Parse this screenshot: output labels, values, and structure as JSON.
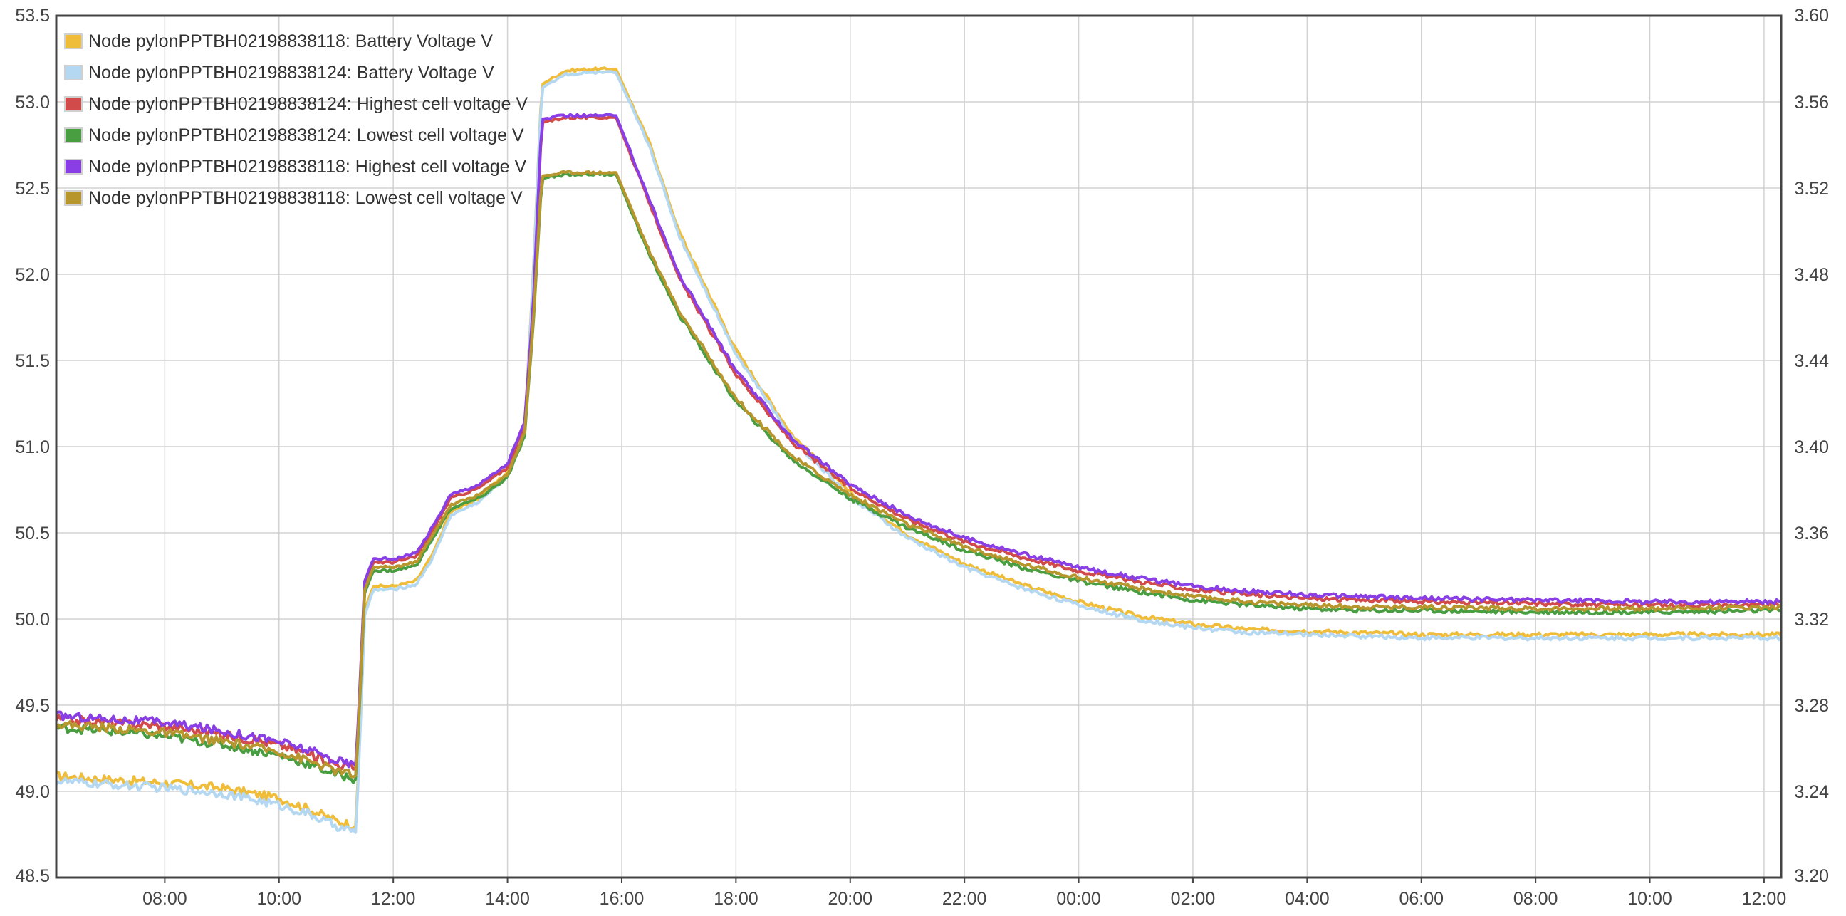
{
  "chart_data": {
    "type": "line",
    "title": "",
    "xlabel": "",
    "ylabel": "",
    "y_left": {
      "min": 48.5,
      "max": 53.5,
      "ticks": [
        "48.5",
        "49.0",
        "49.5",
        "50.0",
        "50.5",
        "51.0",
        "51.5",
        "52.0",
        "52.5",
        "53.0",
        "53.5"
      ]
    },
    "y_right": {
      "min": 3.2,
      "max": 3.6,
      "ticks": [
        "3.20",
        "3.24",
        "3.28",
        "3.32",
        "3.36",
        "3.40",
        "3.44",
        "3.48",
        "3.52",
        "3.56",
        "3.60"
      ]
    },
    "x_ticks": [
      "08:00",
      "10:00",
      "12:00",
      "14:00",
      "16:00",
      "18:00",
      "20:00",
      "22:00",
      "00:00",
      "02:00",
      "04:00",
      "06:00",
      "08:00",
      "10:00",
      "12:00"
    ],
    "x_range_hours": [
      6.1,
      36.3
    ],
    "x_unit": "hours since 00:00 of day 1",
    "grid": true,
    "legend_position": "top-left",
    "series": [
      {
        "name": "Node pylonPPTBH02198838118: Battery Voltage V",
        "color": "#f0bd3a",
        "axis": "left",
        "points": [
          [
            6.1,
            49.09
          ],
          [
            7.0,
            49.07
          ],
          [
            8.0,
            49.05
          ],
          [
            9.0,
            49.02
          ],
          [
            10.0,
            48.96
          ],
          [
            10.5,
            48.9
          ],
          [
            11.0,
            48.83
          ],
          [
            11.35,
            48.8
          ],
          [
            11.5,
            50.05
          ],
          [
            11.65,
            50.19
          ],
          [
            12.0,
            50.19
          ],
          [
            12.4,
            50.22
          ],
          [
            12.7,
            50.38
          ],
          [
            13.0,
            50.62
          ],
          [
            13.5,
            50.7
          ],
          [
            14.0,
            50.85
          ],
          [
            14.3,
            51.1
          ],
          [
            14.45,
            52.0
          ],
          [
            14.6,
            53.1
          ],
          [
            15.0,
            53.18
          ],
          [
            15.5,
            53.19
          ],
          [
            15.9,
            53.19
          ],
          [
            16.5,
            52.75
          ],
          [
            17.0,
            52.25
          ],
          [
            18.0,
            51.56
          ],
          [
            19.0,
            51.06
          ],
          [
            20.0,
            50.73
          ],
          [
            21.0,
            50.49
          ],
          [
            22.0,
            50.32
          ],
          [
            23.0,
            50.2
          ],
          [
            24.0,
            50.1
          ],
          [
            25.0,
            50.02
          ],
          [
            26.0,
            49.97
          ],
          [
            27.0,
            49.94
          ],
          [
            28.0,
            49.93
          ],
          [
            29.0,
            49.92
          ],
          [
            30.0,
            49.91
          ],
          [
            32.0,
            49.91
          ],
          [
            34.0,
            49.91
          ],
          [
            36.3,
            49.91
          ]
        ]
      },
      {
        "name": "Node pylonPPTBH02198838124: Battery Voltage V",
        "color": "#b4d8f2",
        "axis": "left",
        "points": [
          [
            6.1,
            49.06
          ],
          [
            7.0,
            49.04
          ],
          [
            8.0,
            49.02
          ],
          [
            9.0,
            48.99
          ],
          [
            10.0,
            48.92
          ],
          [
            10.5,
            48.87
          ],
          [
            11.0,
            48.8
          ],
          [
            11.35,
            48.76
          ],
          [
            11.5,
            50.02
          ],
          [
            11.65,
            50.17
          ],
          [
            12.0,
            50.17
          ],
          [
            12.4,
            50.2
          ],
          [
            12.7,
            50.36
          ],
          [
            13.0,
            50.6
          ],
          [
            13.5,
            50.68
          ],
          [
            14.0,
            50.83
          ],
          [
            14.3,
            51.08
          ],
          [
            14.45,
            51.98
          ],
          [
            14.6,
            53.08
          ],
          [
            15.0,
            53.16
          ],
          [
            15.5,
            53.17
          ],
          [
            15.9,
            53.17
          ],
          [
            16.5,
            52.73
          ],
          [
            17.0,
            52.23
          ],
          [
            18.0,
            51.54
          ],
          [
            19.0,
            51.04
          ],
          [
            20.0,
            50.71
          ],
          [
            21.0,
            50.47
          ],
          [
            22.0,
            50.3
          ],
          [
            23.0,
            50.18
          ],
          [
            24.0,
            50.08
          ],
          [
            25.0,
            50.0
          ],
          [
            26.0,
            49.95
          ],
          [
            27.0,
            49.92
          ],
          [
            28.0,
            49.91
          ],
          [
            29.0,
            49.9
          ],
          [
            30.0,
            49.89
          ],
          [
            32.0,
            49.89
          ],
          [
            34.0,
            49.89
          ],
          [
            36.3,
            49.89
          ]
        ]
      },
      {
        "name": "Node pylonPPTBH02198838124: Highest cell voltage V",
        "color": "#d24b4b",
        "axis": "left",
        "points": [
          [
            6.1,
            49.42
          ],
          [
            7.0,
            49.4
          ],
          [
            8.0,
            49.38
          ],
          [
            9.0,
            49.33
          ],
          [
            10.0,
            49.27
          ],
          [
            10.5,
            49.22
          ],
          [
            11.0,
            49.16
          ],
          [
            11.35,
            49.13
          ],
          [
            11.5,
            50.2
          ],
          [
            11.65,
            50.33
          ],
          [
            12.0,
            50.33
          ],
          [
            12.4,
            50.36
          ],
          [
            12.7,
            50.52
          ],
          [
            13.0,
            50.7
          ],
          [
            13.5,
            50.76
          ],
          [
            14.0,
            50.88
          ],
          [
            14.3,
            51.12
          ],
          [
            14.45,
            51.8
          ],
          [
            14.6,
            52.88
          ],
          [
            15.0,
            52.91
          ],
          [
            15.5,
            52.91
          ],
          [
            15.9,
            52.91
          ],
          [
            16.5,
            52.4
          ],
          [
            17.0,
            51.98
          ],
          [
            18.0,
            51.42
          ],
          [
            19.0,
            51.02
          ],
          [
            20.0,
            50.76
          ],
          [
            21.0,
            50.58
          ],
          [
            22.0,
            50.45
          ],
          [
            23.0,
            50.36
          ],
          [
            24.0,
            50.28
          ],
          [
            25.0,
            50.22
          ],
          [
            26.0,
            50.17
          ],
          [
            27.0,
            50.14
          ],
          [
            28.0,
            50.12
          ],
          [
            29.0,
            50.11
          ],
          [
            30.0,
            50.1
          ],
          [
            32.0,
            50.09
          ],
          [
            34.0,
            50.08
          ],
          [
            36.3,
            50.08
          ]
        ]
      },
      {
        "name": "Node pylonPPTBH02198838124: Lowest cell voltage V",
        "color": "#4a9e42",
        "axis": "left",
        "points": [
          [
            6.1,
            49.37
          ],
          [
            7.0,
            49.35
          ],
          [
            8.0,
            49.32
          ],
          [
            9.0,
            49.27
          ],
          [
            10.0,
            49.21
          ],
          [
            10.5,
            49.16
          ],
          [
            11.0,
            49.1
          ],
          [
            11.35,
            49.07
          ],
          [
            11.5,
            50.15
          ],
          [
            11.65,
            50.28
          ],
          [
            12.0,
            50.28
          ],
          [
            12.4,
            50.31
          ],
          [
            12.7,
            50.47
          ],
          [
            13.0,
            50.64
          ],
          [
            13.5,
            50.7
          ],
          [
            14.0,
            50.82
          ],
          [
            14.3,
            51.06
          ],
          [
            14.45,
            51.7
          ],
          [
            14.6,
            52.55
          ],
          [
            15.0,
            52.58
          ],
          [
            15.5,
            52.58
          ],
          [
            15.9,
            52.58
          ],
          [
            16.5,
            52.1
          ],
          [
            17.0,
            51.77
          ],
          [
            18.0,
            51.26
          ],
          [
            19.0,
            50.92
          ],
          [
            20.0,
            50.7
          ],
          [
            21.0,
            50.53
          ],
          [
            22.0,
            50.4
          ],
          [
            23.0,
            50.3
          ],
          [
            24.0,
            50.22
          ],
          [
            25.0,
            50.16
          ],
          [
            26.0,
            50.11
          ],
          [
            27.0,
            50.08
          ],
          [
            28.0,
            50.06
          ],
          [
            29.0,
            50.05
          ],
          [
            30.0,
            50.05
          ],
          [
            32.0,
            50.04
          ],
          [
            34.0,
            50.04
          ],
          [
            36.3,
            50.05
          ]
        ]
      },
      {
        "name": "Node pylonPPTBH02198838118: Highest cell voltage V",
        "color": "#8a3ee6",
        "axis": "left",
        "points": [
          [
            6.1,
            49.44
          ],
          [
            7.0,
            49.42
          ],
          [
            8.0,
            49.4
          ],
          [
            9.0,
            49.35
          ],
          [
            10.0,
            49.29
          ],
          [
            10.5,
            49.24
          ],
          [
            11.0,
            49.18
          ],
          [
            11.35,
            49.15
          ],
          [
            11.5,
            50.22
          ],
          [
            11.65,
            50.35
          ],
          [
            12.0,
            50.35
          ],
          [
            12.4,
            50.38
          ],
          [
            12.7,
            50.54
          ],
          [
            13.0,
            50.72
          ],
          [
            13.5,
            50.78
          ],
          [
            14.0,
            50.9
          ],
          [
            14.3,
            51.14
          ],
          [
            14.45,
            51.82
          ],
          [
            14.6,
            52.9
          ],
          [
            15.0,
            52.92
          ],
          [
            15.5,
            52.92
          ],
          [
            15.9,
            52.92
          ],
          [
            16.5,
            52.42
          ],
          [
            17.0,
            52.0
          ],
          [
            18.0,
            51.44
          ],
          [
            19.0,
            51.04
          ],
          [
            20.0,
            50.78
          ],
          [
            21.0,
            50.6
          ],
          [
            22.0,
            50.47
          ],
          [
            23.0,
            50.38
          ],
          [
            24.0,
            50.3
          ],
          [
            25.0,
            50.24
          ],
          [
            26.0,
            50.19
          ],
          [
            27.0,
            50.16
          ],
          [
            28.0,
            50.14
          ],
          [
            29.0,
            50.13
          ],
          [
            30.0,
            50.12
          ],
          [
            32.0,
            50.11
          ],
          [
            34.0,
            50.1
          ],
          [
            36.3,
            50.1
          ]
        ]
      },
      {
        "name": "Node pylonPPTBH02198838118: Lowest cell voltage V",
        "color": "#b8962e",
        "axis": "left",
        "points": [
          [
            6.1,
            49.39
          ],
          [
            7.0,
            49.37
          ],
          [
            8.0,
            49.34
          ],
          [
            9.0,
            49.29
          ],
          [
            10.0,
            49.23
          ],
          [
            10.5,
            49.18
          ],
          [
            11.0,
            49.12
          ],
          [
            11.35,
            49.09
          ],
          [
            11.5,
            50.17
          ],
          [
            11.65,
            50.3
          ],
          [
            12.0,
            50.3
          ],
          [
            12.4,
            50.33
          ],
          [
            12.7,
            50.49
          ],
          [
            13.0,
            50.66
          ],
          [
            13.5,
            50.72
          ],
          [
            14.0,
            50.84
          ],
          [
            14.3,
            51.08
          ],
          [
            14.45,
            51.72
          ],
          [
            14.6,
            52.57
          ],
          [
            15.0,
            52.59
          ],
          [
            15.5,
            52.59
          ],
          [
            15.9,
            52.59
          ],
          [
            16.5,
            52.12
          ],
          [
            17.0,
            51.79
          ],
          [
            18.0,
            51.28
          ],
          [
            19.0,
            50.94
          ],
          [
            20.0,
            50.72
          ],
          [
            21.0,
            50.55
          ],
          [
            22.0,
            50.42
          ],
          [
            23.0,
            50.32
          ],
          [
            24.0,
            50.24
          ],
          [
            25.0,
            50.18
          ],
          [
            26.0,
            50.13
          ],
          [
            27.0,
            50.1
          ],
          [
            28.0,
            50.08
          ],
          [
            29.0,
            50.07
          ],
          [
            30.0,
            50.07
          ],
          [
            32.0,
            50.06
          ],
          [
            34.0,
            50.06
          ],
          [
            36.3,
            50.07
          ]
        ]
      }
    ]
  }
}
